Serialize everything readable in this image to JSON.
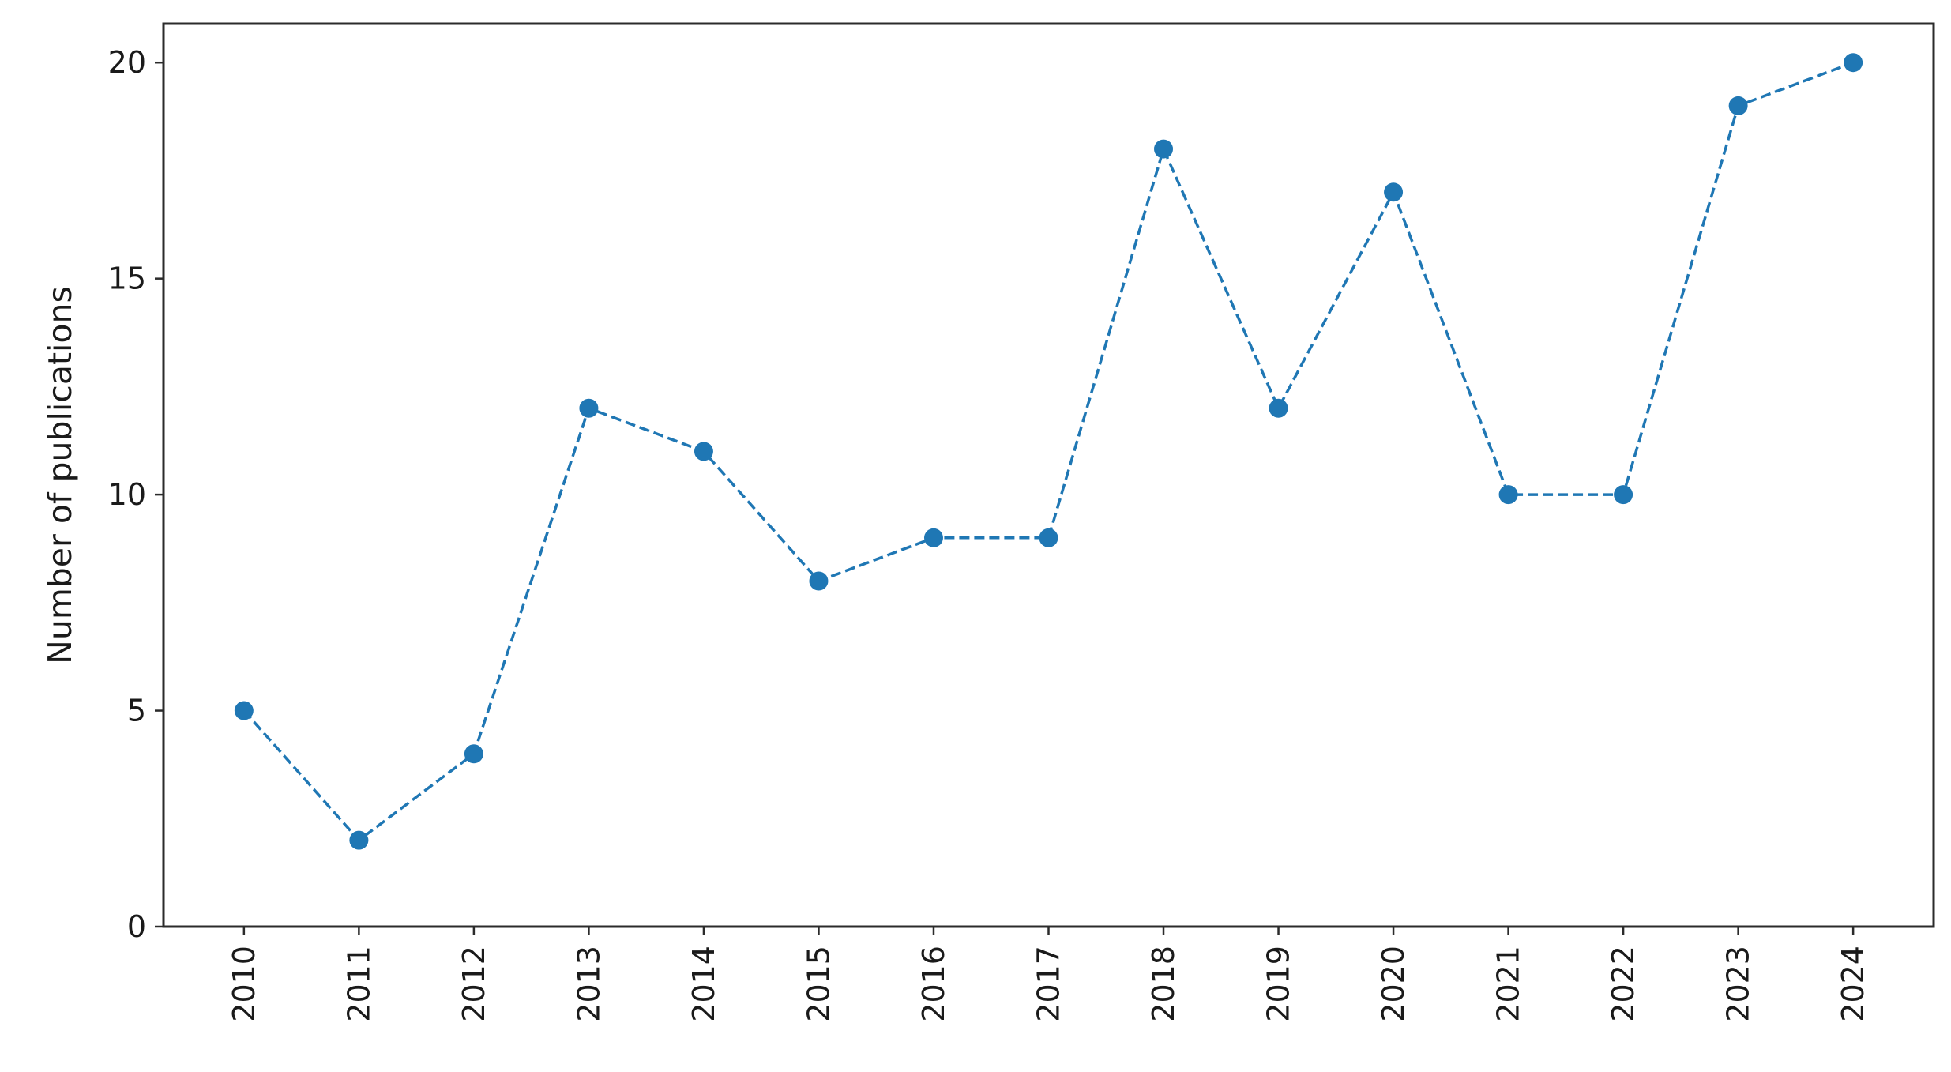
{
  "chart_data": {
    "type": "line",
    "title": "",
    "xlabel": "",
    "ylabel": "Number of publications",
    "x": [
      "2010",
      "2011",
      "2012",
      "2013",
      "2014",
      "2015",
      "2016",
      "2017",
      "2018",
      "2019",
      "2020",
      "2021",
      "2022",
      "2023",
      "2024"
    ],
    "series": [
      {
        "values": [
          5,
          2,
          4,
          12,
          11,
          8,
          9,
          9,
          18,
          12,
          17,
          10,
          10,
          19,
          20
        ],
        "color": "#1f77b4",
        "line_style": "dashed",
        "marker": "circle"
      }
    ],
    "yticks": [
      0,
      5,
      10,
      15,
      20
    ],
    "ylim": [
      0,
      20.9
    ],
    "xlim_padding_categories": 0.7,
    "grid": false,
    "legend": "none"
  }
}
